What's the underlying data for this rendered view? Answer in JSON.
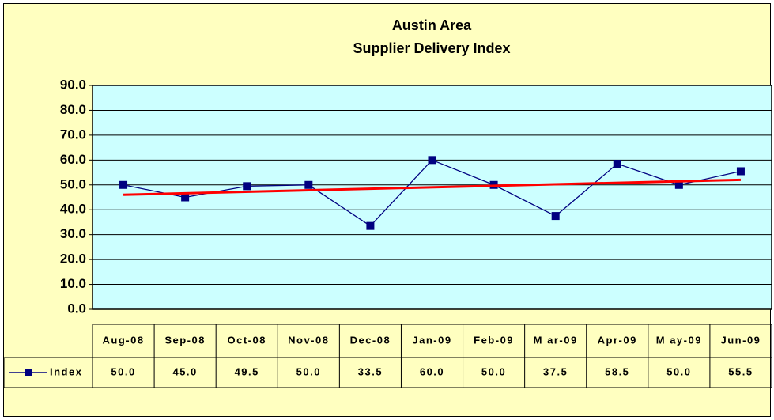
{
  "chart_data": {
    "type": "line",
    "title": "Austin Area",
    "subtitle": "Supplier Delivery Index",
    "categories": [
      "Aug-08",
      "Sep-08",
      "Oct-08",
      "Nov-08",
      "Dec-08",
      "Jan-09",
      "Feb-09",
      "M ar-09",
      "Apr-09",
      "M ay-09",
      "Jun-09"
    ],
    "series": [
      {
        "name": "Index",
        "color": "#000080",
        "values": [
          50,
          45,
          49.5,
          50,
          33.5,
          60,
          50,
          37.5,
          58.5,
          50,
          55.5
        ],
        "value_labels": [
          "50.0",
          "45.0",
          "49.5",
          "50.0",
          "33.5",
          "60.0",
          "50.0",
          "37.5",
          "58.5",
          "50.0",
          "55.5"
        ]
      }
    ],
    "ylim": [
      0,
      90
    ],
    "yticks": [
      {
        "value": 0,
        "label": "0.0"
      },
      {
        "value": 10,
        "label": "10.0"
      },
      {
        "value": 20,
        "label": "20.0"
      },
      {
        "value": 30,
        "label": "30.0"
      },
      {
        "value": 40,
        "label": "40.0"
      },
      {
        "value": 50,
        "label": "50.0"
      },
      {
        "value": 60,
        "label": "60.0"
      },
      {
        "value": 70,
        "label": "70.0"
      },
      {
        "value": 80,
        "label": "80.0"
      },
      {
        "value": 90,
        "label": "90.0"
      }
    ],
    "grid": true,
    "trendline": {
      "type": "linear",
      "color": "#ff0000"
    },
    "plot_background": "#ccffff",
    "background": "#ffffc0"
  }
}
